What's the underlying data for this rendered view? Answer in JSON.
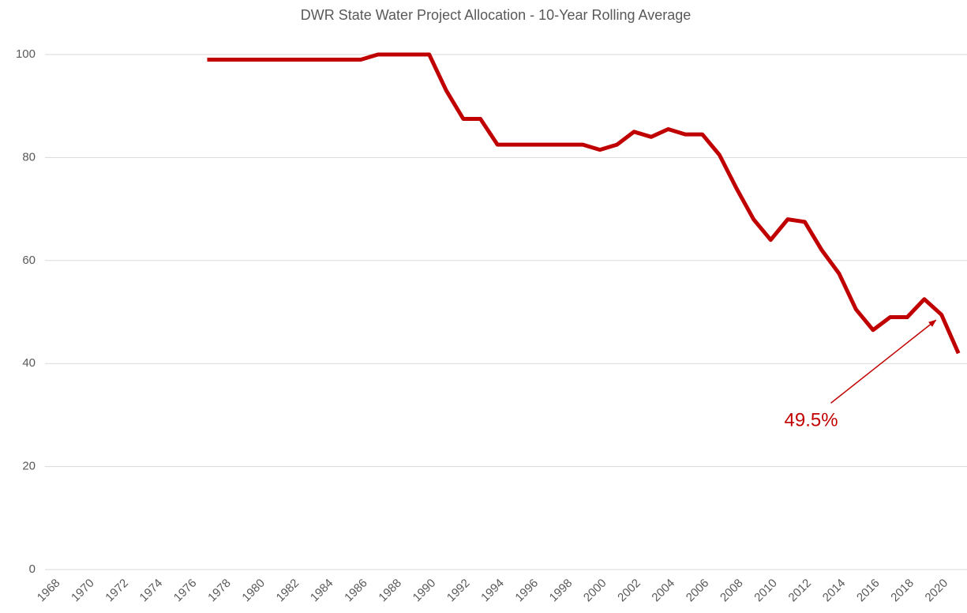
{
  "chart_data": {
    "type": "line",
    "title": "DWR State Water Project Allocation - 10-Year Rolling Average",
    "categories": [
      "1968",
      null,
      "1970",
      null,
      "1972",
      null,
      "1974",
      null,
      "1976",
      null,
      "1978",
      null,
      "1980",
      null,
      "1982",
      null,
      "1984",
      null,
      "1986",
      null,
      "1988",
      null,
      "1990",
      null,
      "1992",
      null,
      "1994",
      null,
      "1996",
      null,
      "1998",
      null,
      "2000",
      null,
      "2002",
      null,
      "2004",
      null,
      "2006",
      null,
      "2008",
      null,
      "2010",
      null,
      "2012",
      null,
      "2014",
      null,
      "2016",
      null,
      "2018",
      null,
      "2020",
      null
    ],
    "series": [
      {
        "name": "10-Year Rolling Average",
        "color": "#c00000",
        "values": [
          null,
          null,
          null,
          null,
          null,
          null,
          null,
          null,
          null,
          99,
          99,
          99,
          99,
          99,
          99,
          99,
          99,
          99,
          99,
          100,
          100,
          100,
          100,
          93,
          87.5,
          87.5,
          82.5,
          82.5,
          82.5,
          82.5,
          82.5,
          82.5,
          81.5,
          82.5,
          85,
          84,
          85.5,
          84.5,
          84.5,
          80.5,
          74,
          68,
          64,
          68,
          67.5,
          62,
          57.5,
          50.5,
          46.5,
          49,
          49,
          52.5,
          49.5,
          42
        ],
        "value_labels": [
          null,
          null,
          null,
          null,
          null,
          null,
          null,
          null,
          null,
          null,
          null,
          null,
          null,
          null,
          null,
          null,
          null,
          null,
          null,
          null,
          null,
          null,
          null,
          null,
          null,
          null,
          null,
          null,
          null,
          null,
          null,
          null,
          null,
          null,
          null,
          null,
          null,
          null,
          null,
          null,
          null,
          null,
          null,
          null,
          null,
          null,
          null,
          null,
          null,
          null,
          null,
          null,
          "49.5%",
          null
        ]
      }
    ],
    "ylim": [
      0,
      100
    ],
    "yticks": [
      0,
      20,
      40,
      60,
      80,
      100
    ],
    "grid": true
  }
}
